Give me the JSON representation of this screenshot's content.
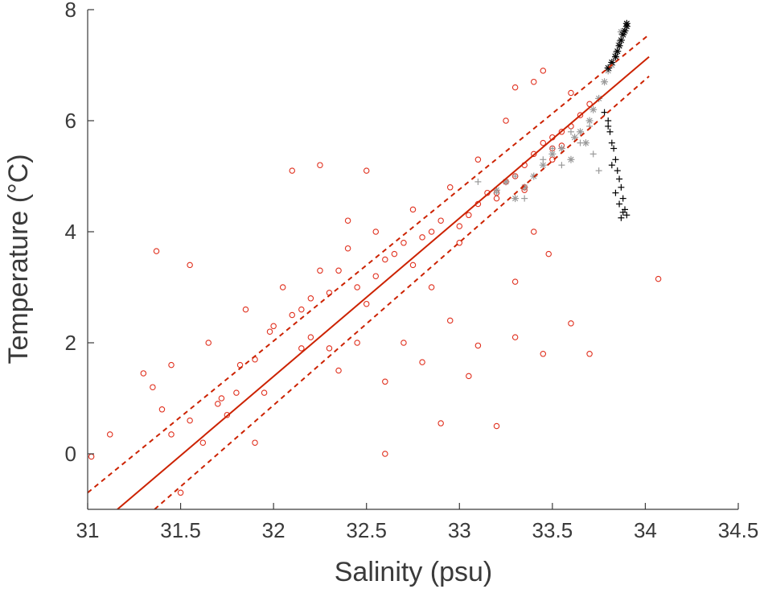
{
  "chart_data": {
    "type": "scatter",
    "title": "",
    "xlabel": "Salinity (psu)",
    "ylabel": "Temperature (°C)",
    "xlim": [
      31,
      34.5
    ],
    "ylim": [
      -1,
      8
    ],
    "xticks": [
      31,
      31.5,
      32,
      32.5,
      33,
      33.5,
      34,
      34.5
    ],
    "xtick_labels": [
      "31",
      "31.5",
      "32",
      "32.5",
      "33",
      "33.5",
      "34",
      "34.5"
    ],
    "yticks": [
      0,
      2,
      4,
      6,
      8
    ],
    "ytick_labels": [
      "0",
      "2",
      "4",
      "6",
      "8"
    ],
    "grid": false,
    "legend": "none",
    "colors": {
      "red": "#e0301e",
      "fit_line": "#cc2200",
      "gray": "#9a9a9a",
      "black": "#000000",
      "axis": "#3a3a3a"
    },
    "series": [
      {
        "marker": "circle-open",
        "color": "#e0301e",
        "x": [
          31.02,
          31.12,
          31.35,
          31.37,
          31.45,
          31.55,
          31.62,
          31.72,
          31.82,
          31.9,
          31.95,
          32.1,
          32.25,
          32.4,
          32.5,
          32.7,
          32.9,
          33.05,
          33.2,
          33.45,
          33.6,
          34.07,
          33.7,
          33.48,
          33.3,
          33.1,
          32.95,
          32.8,
          32.6,
          32.45,
          32.3,
          32.15,
          31.98,
          31.75,
          31.5,
          32.0,
          32.1,
          32.2,
          32.3,
          32.35,
          32.45,
          32.55,
          32.6,
          32.65,
          32.7,
          32.8,
          32.85,
          32.9,
          33.0,
          33.05,
          33.1,
          33.15,
          33.2,
          33.25,
          33.3,
          33.35,
          33.4,
          33.45,
          33.5,
          33.55,
          33.6,
          33.65,
          33.7,
          33.4,
          33.3,
          33.1,
          32.95,
          32.75,
          32.55,
          32.4,
          32.25,
          32.05,
          31.85,
          31.65,
          31.45,
          31.3,
          31.55,
          31.8,
          32.2,
          32.5,
          32.75,
          33.0,
          33.35,
          33.55,
          33.25,
          33.45,
          33.6,
          33.5,
          33.4,
          33.3,
          32.85,
          32.6,
          32.35,
          32.15,
          31.9,
          31.7,
          31.4,
          33.2,
          33.35,
          33.5
        ],
        "y": [
          -0.05,
          0.35,
          1.2,
          3.65,
          0.35,
          3.4,
          0.2,
          1.0,
          1.6,
          0.2,
          1.1,
          5.1,
          5.2,
          4.2,
          5.1,
          2.0,
          0.55,
          1.4,
          0.5,
          1.8,
          2.35,
          3.15,
          1.8,
          3.6,
          2.1,
          1.95,
          2.4,
          1.65,
          0.0,
          2.0,
          1.9,
          2.6,
          2.2,
          0.7,
          -0.7,
          2.3,
          2.5,
          2.8,
          2.9,
          3.3,
          3.0,
          3.2,
          3.5,
          3.6,
          3.8,
          3.9,
          4.0,
          4.2,
          4.1,
          4.3,
          4.5,
          4.7,
          4.6,
          4.9,
          5.0,
          5.2,
          5.4,
          5.6,
          5.5,
          5.8,
          5.9,
          6.1,
          6.3,
          6.7,
          6.6,
          5.3,
          4.8,
          4.4,
          4.0,
          3.7,
          3.3,
          3.0,
          2.6,
          2.0,
          1.6,
          1.45,
          0.6,
          1.1,
          2.1,
          2.7,
          3.4,
          3.8,
          4.75,
          5.55,
          6.0,
          6.9,
          6.5,
          5.3,
          4.0,
          3.1,
          3.0,
          1.3,
          1.5,
          1.9,
          1.7,
          0.9,
          0.8,
          4.7,
          4.8,
          5.7
        ]
      },
      {
        "marker": "asterisk",
        "color": "#9a9a9a",
        "x": [
          33.2,
          33.25,
          33.3,
          33.35,
          33.4,
          33.45,
          33.5,
          33.55,
          33.6,
          33.62,
          33.65,
          33.68,
          33.7,
          33.72,
          33.75,
          33.78,
          33.8,
          33.82,
          33.84,
          33.86,
          33.87
        ],
        "y": [
          4.75,
          4.9,
          4.6,
          4.8,
          5.0,
          5.2,
          5.4,
          5.5,
          5.3,
          5.7,
          5.8,
          5.6,
          6.0,
          6.2,
          6.4,
          6.7,
          6.9,
          7.0,
          7.2,
          7.4,
          7.6
        ]
      },
      {
        "marker": "plus",
        "color": "#9a9a9a",
        "x": [
          33.1,
          33.2,
          33.3,
          33.35,
          33.45,
          33.5,
          33.55,
          33.6,
          33.65,
          33.7,
          33.72,
          33.75
        ],
        "y": [
          4.9,
          4.7,
          5.0,
          4.6,
          5.3,
          5.5,
          5.2,
          5.8,
          5.6,
          5.9,
          5.4,
          5.1
        ]
      },
      {
        "marker": "asterisk",
        "color": "#000000",
        "x": [
          33.8,
          33.82,
          33.84,
          33.85,
          33.86,
          33.87,
          33.88,
          33.89,
          33.9,
          33.9
        ],
        "y": [
          6.95,
          7.05,
          7.15,
          7.25,
          7.35,
          7.45,
          7.55,
          7.62,
          7.7,
          7.75
        ]
      },
      {
        "marker": "plus",
        "color": "#000000",
        "x": [
          33.78,
          33.8,
          33.81,
          33.82,
          33.83,
          33.84,
          33.85,
          33.86,
          33.87,
          33.88,
          33.89,
          33.9,
          33.8,
          33.82,
          33.84,
          33.86,
          33.88,
          33.87
        ],
        "y": [
          6.15,
          6.0,
          5.8,
          5.6,
          5.5,
          5.3,
          5.1,
          4.95,
          4.8,
          4.6,
          4.4,
          4.3,
          5.9,
          5.2,
          4.7,
          4.5,
          4.35,
          4.25
        ]
      }
    ],
    "fit": {
      "x1": 31.16,
      "y1": -1.0,
      "x2": 34.02,
      "y2": 7.15
    },
    "fit_ci_upper": {
      "x1": 31.0,
      "y1": -0.7,
      "x2": 34.02,
      "y2": 7.55
    },
    "fit_ci_lower": {
      "x1": 31.36,
      "y1": -1.0,
      "x2": 34.02,
      "y2": 6.8
    }
  }
}
